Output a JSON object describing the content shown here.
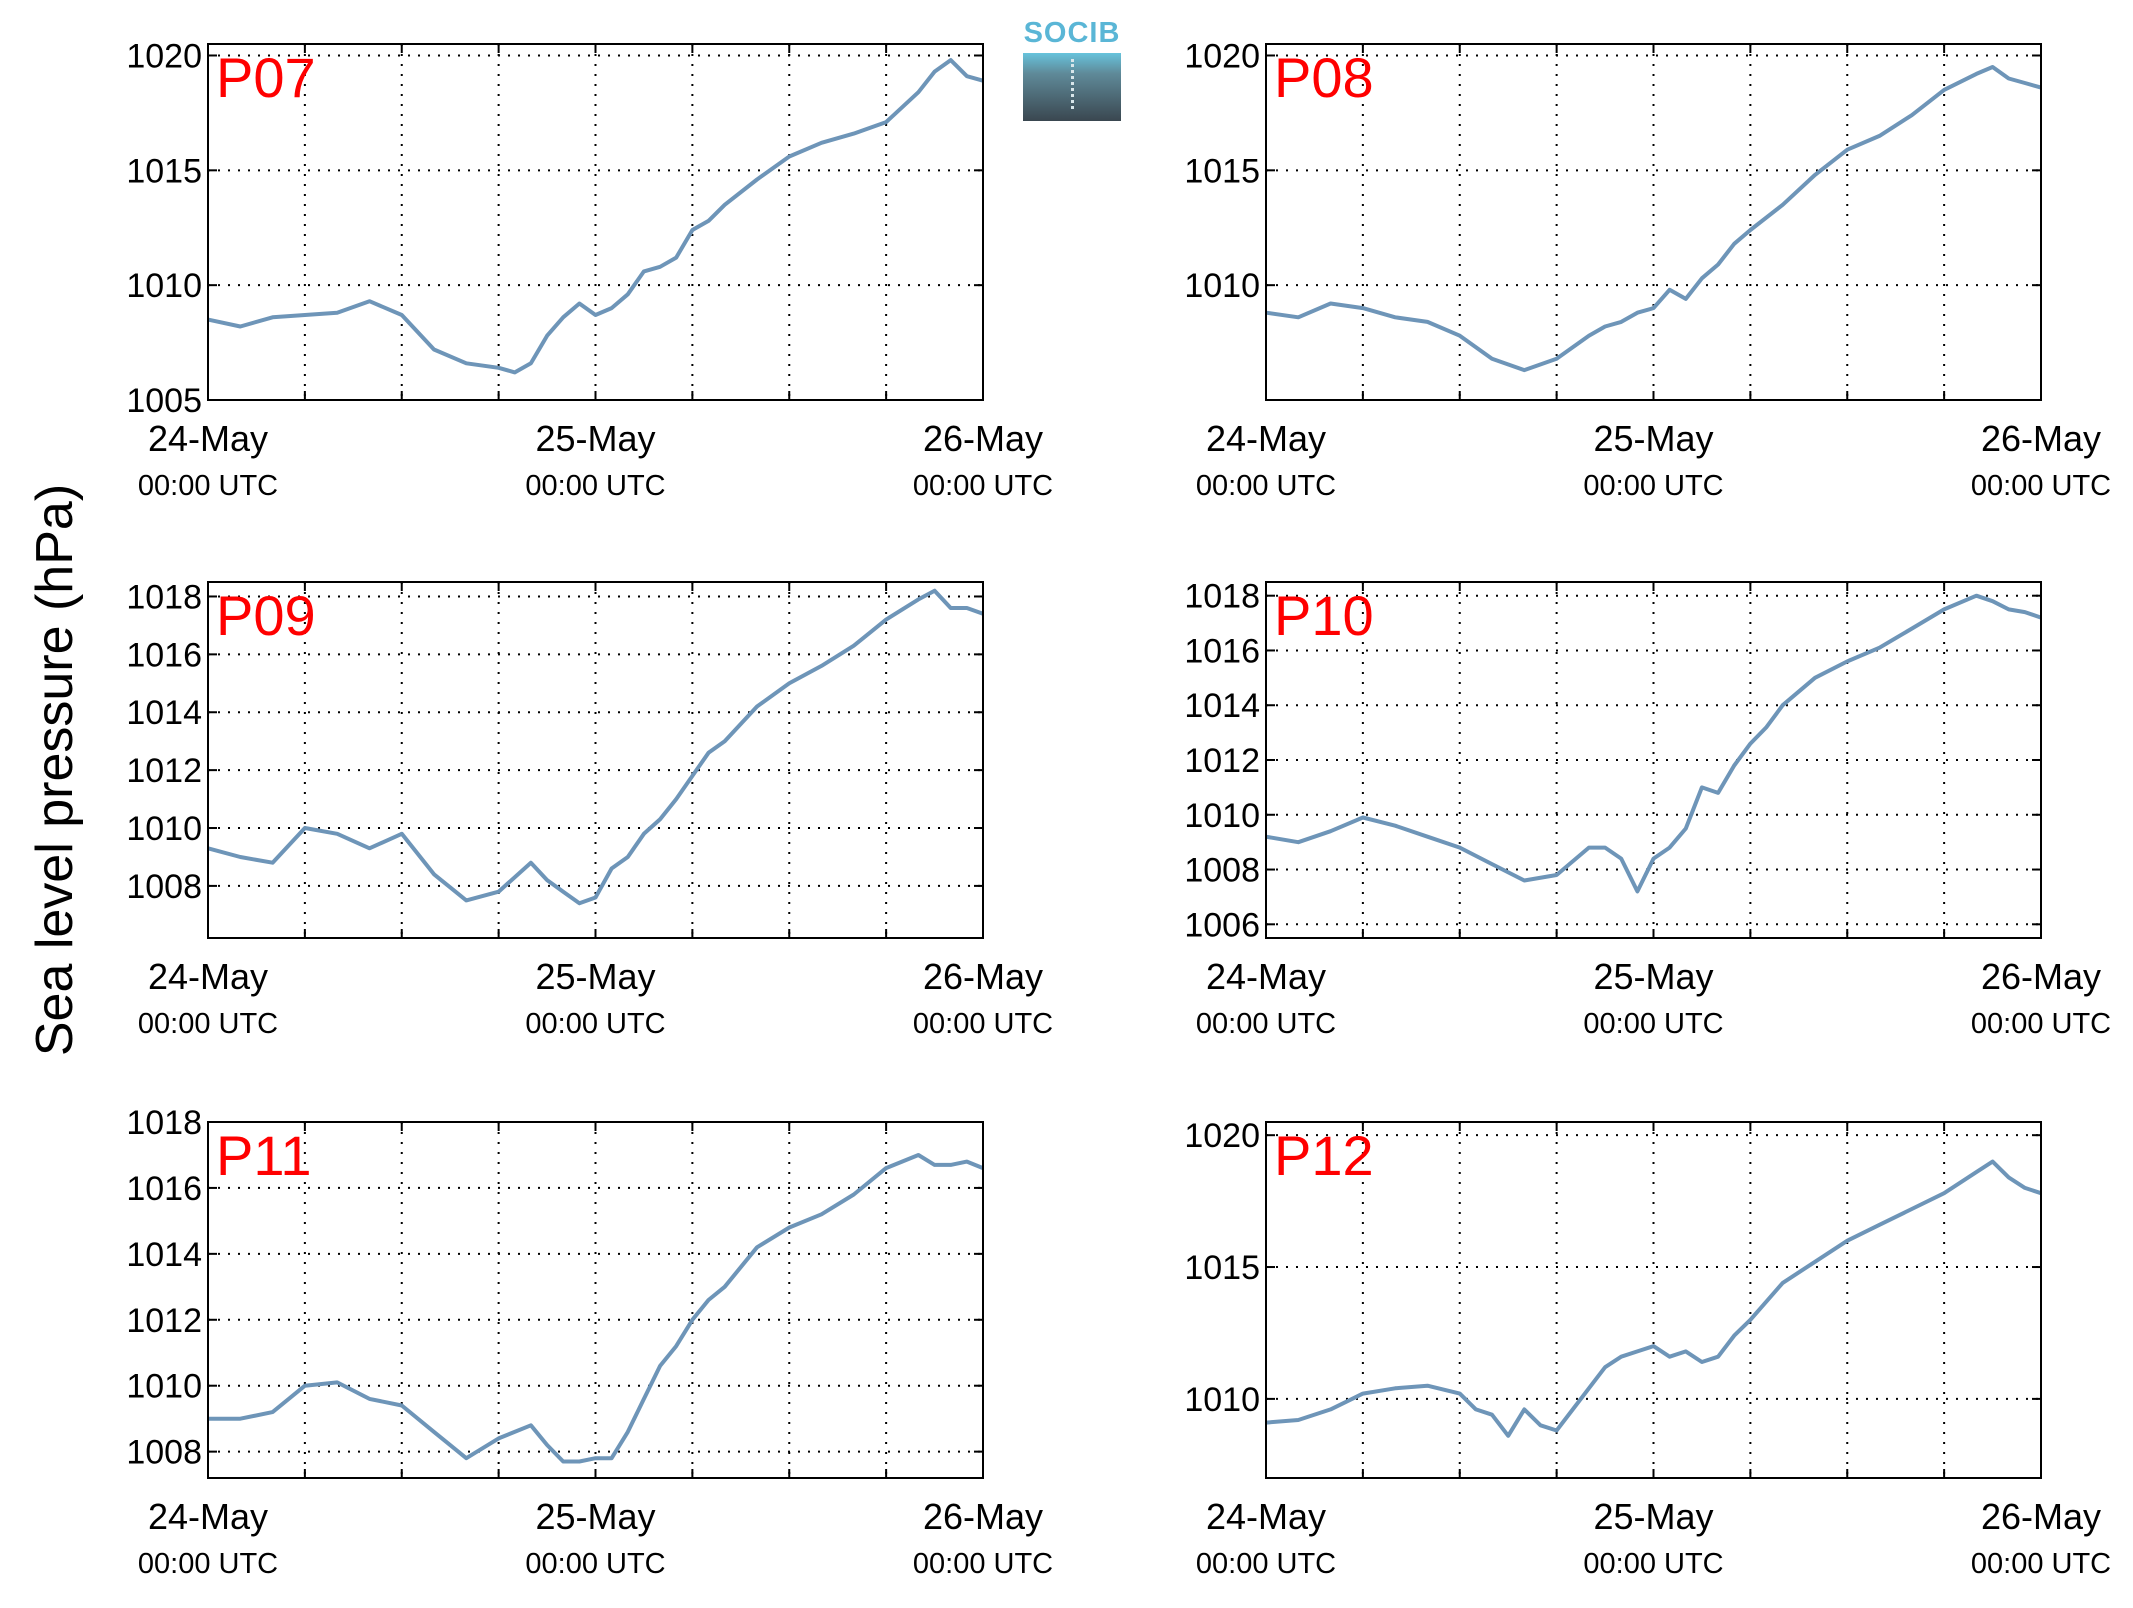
{
  "figure": {
    "ylabel": "Sea level pressure (hPa)",
    "logo_text": "SOCIB",
    "line_color": "#6e95b8",
    "label_color": "#ff0000"
  },
  "chart_data": [
    {
      "type": "line",
      "title": "P07",
      "x_ticks": [
        {
          "day": "24-May",
          "time": "00:00 UTC",
          "x": 0
        },
        {
          "day": "25-May",
          "time": "00:00 UTC",
          "x": 24
        },
        {
          "day": "26-May",
          "time": "00:00 UTC",
          "x": 48
        }
      ],
      "xlim": [
        0,
        48
      ],
      "ylim": [
        1005,
        1020.5
      ],
      "yticks": [
        1005,
        1010,
        1015,
        1020
      ],
      "grid": true,
      "series": [
        {
          "x": [
            0,
            2,
            4,
            6,
            8,
            10,
            12,
            14,
            16,
            18,
            19,
            20,
            21,
            22,
            23,
            24,
            25,
            26,
            27,
            28,
            29,
            30,
            31,
            32,
            34,
            36,
            38,
            40,
            42,
            44,
            45,
            46,
            47,
            48
          ],
          "y": [
            1008.5,
            1008.2,
            1008.6,
            1008.7,
            1008.8,
            1009.3,
            1008.7,
            1007.2,
            1006.6,
            1006.4,
            1006.2,
            1006.6,
            1007.8,
            1008.6,
            1009.2,
            1008.7,
            1009.0,
            1009.6,
            1010.6,
            1010.8,
            1011.2,
            1012.4,
            1012.8,
            1013.5,
            1014.6,
            1015.6,
            1016.2,
            1016.6,
            1017.1,
            1018.4,
            1019.3,
            1019.8,
            1019.1,
            1018.9
          ]
        }
      ]
    },
    {
      "type": "line",
      "title": "P08",
      "x_ticks": [
        {
          "day": "24-May",
          "time": "00:00 UTC",
          "x": 0
        },
        {
          "day": "25-May",
          "time": "00:00 UTC",
          "x": 24
        },
        {
          "day": "26-May",
          "time": "00:00 UTC",
          "x": 48
        }
      ],
      "xlim": [
        0,
        48
      ],
      "ylim": [
        1005,
        1020.5
      ],
      "yticks": [
        1010,
        1015,
        1020
      ],
      "grid": true,
      "series": [
        {
          "x": [
            0,
            2,
            4,
            6,
            8,
            10,
            12,
            14,
            16,
            18,
            20,
            21,
            22,
            23,
            24,
            25,
            26,
            27,
            28,
            29,
            30,
            32,
            34,
            36,
            38,
            40,
            42,
            44,
            45,
            46,
            47,
            48
          ],
          "y": [
            1008.8,
            1008.6,
            1009.2,
            1009.0,
            1008.6,
            1008.4,
            1007.8,
            1006.8,
            1006.3,
            1006.8,
            1007.8,
            1008.2,
            1008.4,
            1008.8,
            1009.0,
            1009.8,
            1009.4,
            1010.3,
            1010.9,
            1011.8,
            1012.4,
            1013.5,
            1014.8,
            1015.9,
            1016.5,
            1017.4,
            1018.5,
            1019.2,
            1019.5,
            1019.0,
            1018.8,
            1018.6
          ]
        }
      ]
    },
    {
      "type": "line",
      "title": "P09",
      "x_ticks": [
        {
          "day": "24-May",
          "time": "00:00 UTC",
          "x": 0
        },
        {
          "day": "25-May",
          "time": "00:00 UTC",
          "x": 24
        },
        {
          "day": "26-May",
          "time": "00:00 UTC",
          "x": 48
        }
      ],
      "xlim": [
        0,
        48
      ],
      "ylim": [
        1006.2,
        1018.5
      ],
      "yticks": [
        1008,
        1010,
        1012,
        1014,
        1016,
        1018
      ],
      "grid": true,
      "series": [
        {
          "x": [
            0,
            2,
            4,
            6,
            8,
            10,
            12,
            14,
            16,
            18,
            20,
            21,
            22,
            23,
            24,
            25,
            26,
            27,
            28,
            29,
            30,
            31,
            32,
            34,
            36,
            38,
            40,
            42,
            44,
            45,
            46,
            47,
            48
          ],
          "y": [
            1009.3,
            1009.0,
            1008.8,
            1010.0,
            1009.8,
            1009.3,
            1009.8,
            1008.4,
            1007.5,
            1007.8,
            1008.8,
            1008.2,
            1007.8,
            1007.4,
            1007.6,
            1008.6,
            1009.0,
            1009.8,
            1010.3,
            1011.0,
            1011.8,
            1012.6,
            1013.0,
            1014.2,
            1015.0,
            1015.6,
            1016.3,
            1017.2,
            1017.9,
            1018.2,
            1017.6,
            1017.6,
            1017.4
          ]
        }
      ]
    },
    {
      "type": "line",
      "title": "P10",
      "x_ticks": [
        {
          "day": "24-May",
          "time": "00:00 UTC",
          "x": 0
        },
        {
          "day": "25-May",
          "time": "00:00 UTC",
          "x": 24
        },
        {
          "day": "26-May",
          "time": "00:00 UTC",
          "x": 48
        }
      ],
      "xlim": [
        0,
        48
      ],
      "ylim": [
        1005.5,
        1018.5
      ],
      "yticks": [
        1006,
        1008,
        1010,
        1012,
        1014,
        1016,
        1018
      ],
      "grid": true,
      "series": [
        {
          "x": [
            0,
            2,
            4,
            6,
            8,
            10,
            12,
            14,
            16,
            18,
            20,
            21,
            22,
            23,
            24,
            25,
            26,
            27,
            28,
            29,
            30,
            31,
            32,
            34,
            36,
            38,
            40,
            42,
            44,
            45,
            46,
            47,
            48
          ],
          "y": [
            1009.2,
            1009.0,
            1009.4,
            1009.9,
            1009.6,
            1009.2,
            1008.8,
            1008.2,
            1007.6,
            1007.8,
            1008.8,
            1008.8,
            1008.4,
            1007.2,
            1008.4,
            1008.8,
            1009.5,
            1011.0,
            1010.8,
            1011.8,
            1012.6,
            1013.2,
            1014.0,
            1015.0,
            1015.6,
            1016.1,
            1016.8,
            1017.5,
            1018.0,
            1017.8,
            1017.5,
            1017.4,
            1017.2
          ]
        }
      ]
    },
    {
      "type": "line",
      "title": "P11",
      "x_ticks": [
        {
          "day": "24-May",
          "time": "00:00 UTC",
          "x": 0
        },
        {
          "day": "25-May",
          "time": "00:00 UTC",
          "x": 24
        },
        {
          "day": "26-May",
          "time": "00:00 UTC",
          "x": 48
        }
      ],
      "xlim": [
        0,
        48
      ],
      "ylim": [
        1007.2,
        1018
      ],
      "yticks": [
        1008,
        1010,
        1012,
        1014,
        1016,
        1018
      ],
      "grid": true,
      "series": [
        {
          "x": [
            0,
            2,
            4,
            6,
            8,
            10,
            12,
            14,
            16,
            18,
            20,
            21,
            22,
            23,
            24,
            25,
            26,
            27,
            28,
            29,
            30,
            31,
            32,
            34,
            36,
            38,
            40,
            42,
            44,
            45,
            46,
            47,
            48
          ],
          "y": [
            1009.0,
            1009.0,
            1009.2,
            1010.0,
            1010.1,
            1009.6,
            1009.4,
            1008.6,
            1007.8,
            1008.4,
            1008.8,
            1008.2,
            1007.7,
            1007.7,
            1007.8,
            1007.8,
            1008.6,
            1009.6,
            1010.6,
            1011.2,
            1012.0,
            1012.6,
            1013.0,
            1014.2,
            1014.8,
            1015.2,
            1015.8,
            1016.6,
            1017.0,
            1016.7,
            1016.7,
            1016.8,
            1016.6
          ]
        }
      ]
    },
    {
      "type": "line",
      "title": "P12",
      "x_ticks": [
        {
          "day": "24-May",
          "time": "00:00 UTC",
          "x": 0
        },
        {
          "day": "25-May",
          "time": "00:00 UTC",
          "x": 24
        },
        {
          "day": "26-May",
          "time": "00:00 UTC",
          "x": 48
        }
      ],
      "xlim": [
        0,
        48
      ],
      "ylim": [
        1007,
        1020.5
      ],
      "yticks": [
        1010,
        1015,
        1020
      ],
      "grid": true,
      "series": [
        {
          "x": [
            0,
            2,
            4,
            6,
            8,
            10,
            12,
            13,
            14,
            15,
            16,
            17,
            18,
            19,
            20,
            21,
            22,
            23,
            24,
            25,
            26,
            27,
            28,
            29,
            30,
            32,
            34,
            36,
            38,
            40,
            42,
            44,
            45,
            46,
            47,
            48
          ],
          "y": [
            1009.1,
            1009.2,
            1009.6,
            1010.2,
            1010.4,
            1010.5,
            1010.2,
            1009.6,
            1009.4,
            1008.6,
            1009.6,
            1009.0,
            1008.8,
            1009.6,
            1010.4,
            1011.2,
            1011.6,
            1011.8,
            1012.0,
            1011.6,
            1011.8,
            1011.4,
            1011.6,
            1012.4,
            1013.0,
            1014.4,
            1015.2,
            1016.0,
            1016.6,
            1017.2,
            1017.8,
            1018.6,
            1019.0,
            1018.4,
            1018.0,
            1017.8
          ]
        }
      ]
    }
  ]
}
